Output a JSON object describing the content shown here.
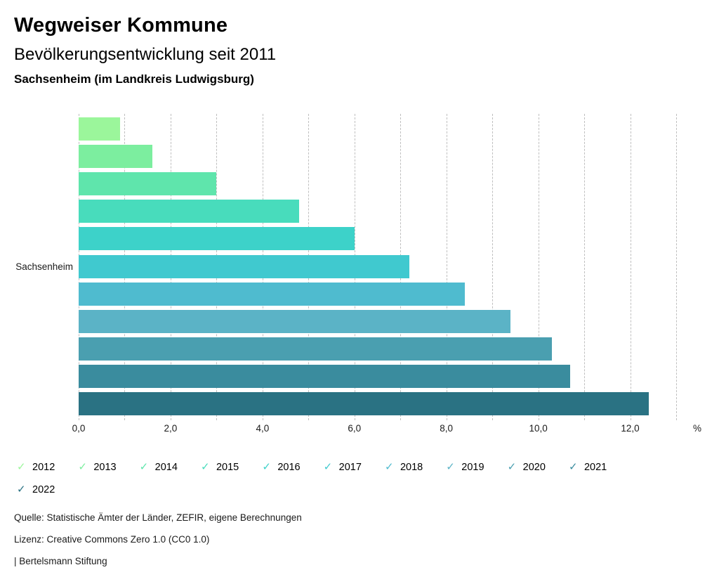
{
  "header": {
    "title": "Wegweiser Kommune",
    "subtitle": "Bevölkerungsentwicklung seit 2011",
    "region": "Sachsenheim (im Landkreis Ludwigsburg)"
  },
  "chart_data": {
    "type": "bar",
    "orientation": "horizontal",
    "title": "Bevölkerungsentwicklung seit 2011",
    "group_label": "Sachsenheim",
    "categories": [
      "2012",
      "2013",
      "2014",
      "2015",
      "2016",
      "2017",
      "2018",
      "2019",
      "2020",
      "2021",
      "2022"
    ],
    "values": [
      0.9,
      1.6,
      3.0,
      4.8,
      6.0,
      7.2,
      8.4,
      9.4,
      10.3,
      10.7,
      12.4
    ],
    "colors": [
      "#9BF69B",
      "#7CEE9F",
      "#5FE5AC",
      "#48DCBC",
      "#3DD2C9",
      "#40C9CF",
      "#4FBBCF",
      "#5BB3C6",
      "#4A9FB0",
      "#3A8C9E",
      "#2A7283"
    ],
    "xlabel": "%",
    "xlim": [
      0,
      13
    ],
    "gridline_step": 1,
    "grid": "vertical-dashed",
    "x_major_ticks": [
      0,
      2,
      4,
      6,
      8,
      10,
      12
    ],
    "x_tick_labels": [
      "0,0",
      "2,0",
      "4,0",
      "6,0",
      "8,0",
      "10,0",
      "12,0"
    ],
    "legend_position": "bottom",
    "legend_check_icon": "✓"
  },
  "footer": {
    "source": "Quelle: Statistische Ämter der Länder, ZEFIR, eigene Berechnungen",
    "license": "Lizenz: Creative Commons Zero 1.0 (CC0 1.0)",
    "attribution": "| Bertelsmann Stiftung"
  }
}
